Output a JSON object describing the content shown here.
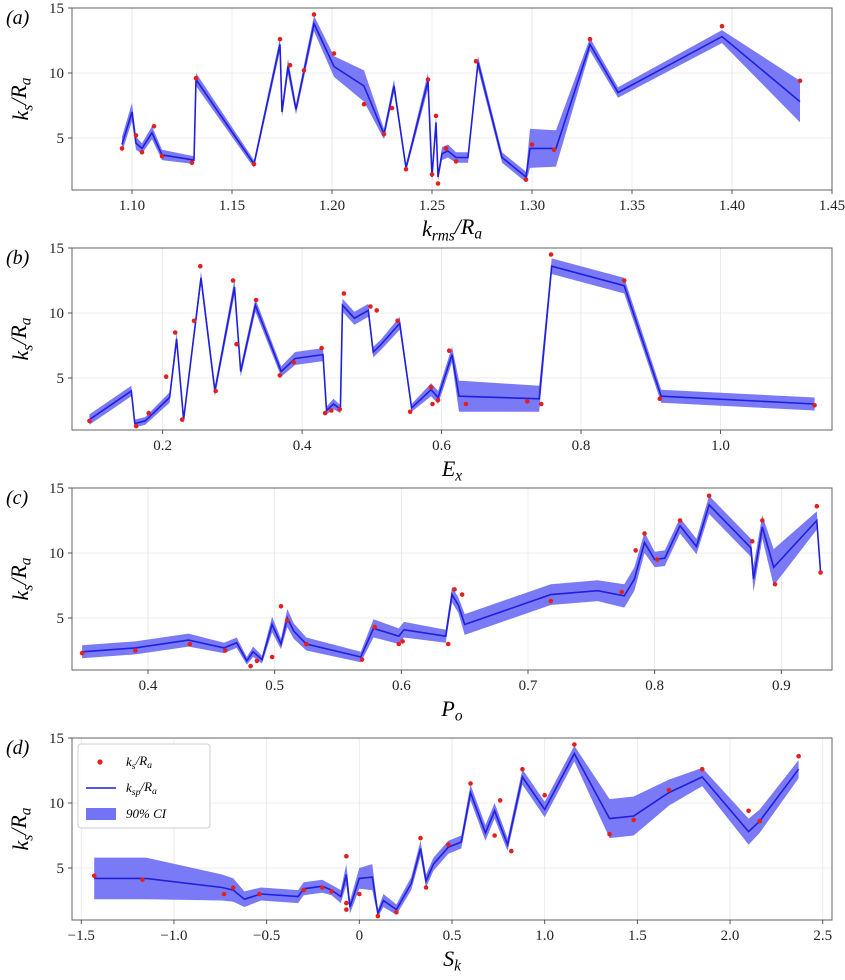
{
  "figure": {
    "legend": {
      "entries": [
        {
          "label": "k_s/R_a",
          "marker": "dot",
          "color": "#e3201b"
        },
        {
          "label": "k_sp/R_a",
          "marker": "line",
          "color": "#1f1fdc"
        },
        {
          "label": "90% CI",
          "marker": "band",
          "color": "#7373f5"
        }
      ],
      "placement": "upper-left",
      "panel": "(d)"
    },
    "colors": {
      "points": "#e3201b",
      "line": "#1f1fdc",
      "band": "#7373f5"
    }
  },
  "chart_data": [
    {
      "type": "line",
      "panel": "(a)",
      "xlabel": "k_rms/R_a",
      "ylabel": "k_s/R_a",
      "xlim": [
        1.07,
        1.45
      ],
      "ylim": [
        1,
        15
      ],
      "xticks": [
        "1.10",
        "1.15",
        "1.20",
        "1.25",
        "1.30",
        "1.35",
        "1.40",
        "1.45"
      ],
      "yticks": [
        "5",
        "10",
        "15"
      ],
      "grid": true,
      "line": {
        "x": [
          1.095,
          1.1,
          1.102,
          1.105,
          1.11,
          1.115,
          1.131,
          1.132,
          1.161,
          1.174,
          1.175,
          1.178,
          1.182,
          1.191,
          1.201,
          1.216,
          1.226,
          1.231,
          1.237,
          1.248,
          1.25,
          1.252,
          1.253,
          1.255,
          1.258,
          1.262,
          1.268,
          1.273,
          1.285,
          1.297,
          1.299,
          1.312,
          1.329,
          1.343,
          1.395,
          1.434
        ],
        "y": [
          4.5,
          7.0,
          4.6,
          4.2,
          5.4,
          3.7,
          3.3,
          9.5,
          3.0,
          12.2,
          7.0,
          10.5,
          7.2,
          13.8,
          10.5,
          9.0,
          5.3,
          9.0,
          2.7,
          9.4,
          2.0,
          6.2,
          2.0,
          3.8,
          4.0,
          3.5,
          3.5,
          10.8,
          3.5,
          2.0,
          4.2,
          4.2,
          12.2,
          8.5,
          12.8,
          7.8
        ],
        "band": [
          0.6,
          0.7,
          0.5,
          0.4,
          0.5,
          0.4,
          0.3,
          0.5,
          0.3,
          0.5,
          0.4,
          0.6,
          0.4,
          0.6,
          0.8,
          1.2,
          0.4,
          0.5,
          0.3,
          0.6,
          0.3,
          0.5,
          0.3,
          0.5,
          0.5,
          0.4,
          0.4,
          0.5,
          0.4,
          0.4,
          1.5,
          1.4,
          0.5,
          0.4,
          0.5,
          1.6
        ]
      },
      "points": {
        "x": [
          1.095,
          1.102,
          1.105,
          1.111,
          1.115,
          1.13,
          1.132,
          1.161,
          1.174,
          1.179,
          1.186,
          1.191,
          1.201,
          1.216,
          1.226,
          1.23,
          1.237,
          1.248,
          1.25,
          1.252,
          1.253,
          1.257,
          1.262,
          1.272,
          1.297,
          1.3,
          1.311,
          1.329,
          1.395,
          1.434
        ],
        "y": [
          4.2,
          5.2,
          3.9,
          5.9,
          3.6,
          3.1,
          9.6,
          3.0,
          12.6,
          10.6,
          10.2,
          14.5,
          11.5,
          7.6,
          5.3,
          7.3,
          2.6,
          9.5,
          2.2,
          6.7,
          1.5,
          4.2,
          3.2,
          10.9,
          1.8,
          4.5,
          4.1,
          12.6,
          13.6,
          9.4
        ]
      }
    },
    {
      "type": "line",
      "panel": "(b)",
      "xlabel": "E_x",
      "ylabel": "k_s/R_a",
      "xlim": [
        0.07,
        1.16
      ],
      "ylim": [
        1,
        15
      ],
      "xticks": [
        "0.2",
        "0.4",
        "0.6",
        "0.8",
        "1.0"
      ],
      "yticks": [
        "5",
        "10",
        "15"
      ],
      "grid": true,
      "line": {
        "x": [
          0.095,
          0.155,
          0.16,
          0.175,
          0.21,
          0.22,
          0.23,
          0.255,
          0.275,
          0.303,
          0.312,
          0.333,
          0.37,
          0.39,
          0.43,
          0.435,
          0.445,
          0.455,
          0.458,
          0.475,
          0.495,
          0.502,
          0.512,
          0.54,
          0.557,
          0.585,
          0.595,
          0.615,
          0.625,
          0.74,
          0.758,
          0.862,
          0.915,
          1.135
        ],
        "y": [
          1.8,
          4.0,
          1.5,
          1.7,
          3.5,
          8.0,
          1.8,
          12.7,
          4.0,
          12.0,
          5.5,
          10.6,
          5.5,
          6.5,
          6.8,
          2.5,
          3.0,
          2.6,
          10.6,
          9.6,
          10.2,
          7.0,
          7.5,
          9.2,
          2.7,
          4.1,
          3.5,
          6.8,
          3.6,
          3.4,
          13.6,
          12.1,
          3.6,
          3.0
        ]
      },
      "band": [
        0.4,
        0.4,
        0.3,
        0.3,
        0.4,
        0.5,
        0.3,
        0.5,
        0.4,
        0.6,
        0.4,
        0.5,
        0.4,
        0.5,
        0.5,
        0.3,
        0.4,
        0.3,
        0.5,
        0.5,
        0.5,
        0.4,
        0.4,
        0.5,
        0.3,
        0.5,
        0.5,
        0.6,
        1.2,
        1.0,
        0.6,
        0.6,
        0.5,
        0.5
      ],
      "points": {
        "x": [
          0.095,
          0.162,
          0.18,
          0.205,
          0.218,
          0.228,
          0.245,
          0.254,
          0.276,
          0.301,
          0.306,
          0.334,
          0.368,
          0.388,
          0.428,
          0.433,
          0.442,
          0.454,
          0.46,
          0.498,
          0.507,
          0.537,
          0.555,
          0.585,
          0.587,
          0.595,
          0.611,
          0.635,
          0.723,
          0.743,
          0.757,
          0.862,
          0.913,
          1.135
        ],
        "y": [
          1.7,
          1.3,
          2.3,
          5.1,
          8.5,
          1.8,
          9.4,
          13.6,
          4.0,
          12.5,
          7.6,
          11.0,
          5.2,
          6.2,
          7.3,
          2.3,
          2.5,
          2.6,
          11.5,
          10.5,
          10.2,
          9.4,
          2.4,
          4.3,
          3.0,
          3.3,
          7.1,
          3.0,
          3.2,
          3.0,
          14.5,
          12.5,
          3.4,
          2.9
        ]
      }
    },
    {
      "type": "line",
      "panel": "(c)",
      "xlabel": "P_o",
      "ylabel": "k_s/R_a",
      "xlim": [
        0.34,
        0.94
      ],
      "ylim": [
        1,
        15
      ],
      "xticks": [
        "0.4",
        "0.5",
        "0.6",
        "0.7",
        "0.8",
        "0.9"
      ],
      "yticks": [
        "5",
        "10",
        "15"
      ],
      "grid": true,
      "line": {
        "x": [
          0.348,
          0.39,
          0.432,
          0.46,
          0.47,
          0.478,
          0.483,
          0.49,
          0.498,
          0.505,
          0.51,
          0.515,
          0.525,
          0.568,
          0.578,
          0.598,
          0.602,
          0.635,
          0.64,
          0.645,
          0.65,
          0.718,
          0.755,
          0.776,
          0.784,
          0.792,
          0.8,
          0.808,
          0.82,
          0.833,
          0.843,
          0.876,
          0.878,
          0.885,
          0.894,
          0.928,
          0.931
        ],
        "y": [
          2.4,
          2.7,
          3.3,
          2.7,
          3.1,
          1.7,
          2.4,
          1.8,
          4.5,
          3.0,
          5.0,
          4.0,
          3.0,
          2.0,
          4.2,
          3.6,
          4.1,
          3.6,
          6.8,
          6.0,
          4.5,
          6.8,
          7.1,
          6.7,
          8.0,
          10.8,
          9.5,
          9.6,
          12.1,
          10.5,
          13.7,
          10.4,
          8.0,
          12.0,
          8.9,
          12.5,
          8.5
        ]
      },
      "band": [
        0.5,
        0.5,
        0.5,
        0.4,
        0.4,
        0.3,
        0.4,
        0.3,
        0.6,
        0.4,
        0.7,
        0.6,
        0.5,
        0.4,
        0.7,
        0.6,
        0.6,
        0.5,
        0.6,
        0.6,
        0.8,
        0.8,
        0.8,
        0.9,
        0.9,
        0.8,
        0.6,
        0.6,
        0.6,
        0.6,
        0.7,
        0.7,
        1.0,
        0.9,
        1.4,
        0.7,
        0.3
      ],
      "points": {
        "x": [
          0.348,
          0.39,
          0.433,
          0.461,
          0.481,
          0.486,
          0.498,
          0.505,
          0.51,
          0.525,
          0.569,
          0.579,
          0.598,
          0.601,
          0.637,
          0.642,
          0.648,
          0.718,
          0.774,
          0.785,
          0.792,
          0.802,
          0.82,
          0.843,
          0.877,
          0.885,
          0.895,
          0.928,
          0.931
        ],
        "y": [
          2.3,
          2.5,
          3.0,
          2.5,
          1.3,
          1.7,
          2.0,
          5.9,
          4.8,
          3.0,
          1.8,
          4.3,
          3.0,
          3.2,
          3.0,
          7.2,
          6.8,
          6.3,
          7.0,
          10.2,
          11.5,
          9.5,
          12.5,
          14.4,
          10.9,
          12.5,
          7.6,
          13.6,
          8.5
        ]
      }
    },
    {
      "type": "line",
      "panel": "(d)",
      "xlabel": "S_k",
      "ylabel": "k_s/R_a",
      "xlim": [
        -1.55,
        2.55
      ],
      "ylim": [
        1,
        15
      ],
      "xticks": [
        "−1.5",
        "−1.0",
        "−0.5",
        "0",
        "0.5",
        "1.0",
        "1.5",
        "2.0",
        "2.5"
      ],
      "yticks": [
        "5",
        "10",
        "15"
      ],
      "grid": true,
      "line": {
        "x": [
          -1.43,
          -1.15,
          -0.74,
          -0.68,
          -0.62,
          -0.53,
          -0.33,
          -0.3,
          -0.2,
          -0.15,
          -0.1,
          -0.07,
          -0.05,
          0.0,
          0.07,
          0.1,
          0.13,
          0.2,
          0.28,
          0.33,
          0.36,
          0.4,
          0.48,
          0.55,
          0.6,
          0.68,
          0.73,
          0.8,
          0.88,
          1.0,
          1.16,
          1.35,
          1.48,
          1.67,
          1.85,
          2.1,
          2.16,
          2.37
        ],
        "y": [
          4.2,
          4.2,
          3.5,
          3.3,
          2.6,
          3.0,
          2.8,
          3.4,
          3.6,
          3.3,
          2.8,
          4.5,
          2.0,
          4.2,
          4.3,
          1.5,
          2.5,
          1.8,
          3.8,
          6.5,
          4.0,
          5.3,
          6.6,
          7.0,
          10.8,
          7.7,
          9.4,
          6.8,
          12.0,
          9.5,
          13.8,
          8.8,
          9.0,
          10.8,
          12.0,
          7.8,
          8.6,
          12.6
        ]
      },
      "band": [
        1.6,
        1.6,
        1.0,
        0.9,
        0.6,
        0.5,
        0.5,
        0.5,
        0.5,
        0.4,
        0.5,
        0.8,
        0.5,
        0.8,
        1.0,
        0.3,
        0.5,
        0.4,
        0.5,
        0.6,
        0.5,
        0.5,
        0.5,
        0.5,
        0.6,
        0.6,
        0.6,
        0.5,
        0.6,
        0.6,
        0.6,
        1.5,
        1.5,
        1.0,
        0.7,
        1.0,
        0.9,
        0.7
      ],
      "points": {
        "x": [
          -1.43,
          -1.17,
          -0.73,
          -0.68,
          -0.54,
          -0.3,
          -0.2,
          -0.15,
          -0.07,
          -0.07,
          -0.07,
          0.0,
          0.1,
          0.2,
          0.33,
          0.36,
          0.48,
          0.6,
          0.73,
          0.76,
          0.82,
          0.88,
          1.0,
          1.16,
          1.35,
          1.48,
          1.67,
          1.85,
          2.1,
          2.16,
          2.37
        ],
        "y": [
          4.4,
          4.1,
          3.0,
          3.5,
          3.0,
          3.3,
          3.5,
          3.2,
          5.9,
          2.3,
          1.8,
          3.0,
          1.3,
          1.6,
          7.3,
          3.5,
          6.8,
          11.5,
          7.5,
          10.2,
          6.3,
          12.6,
          10.6,
          14.5,
          7.6,
          8.7,
          11.0,
          12.6,
          9.4,
          8.6,
          13.6
        ]
      }
    }
  ]
}
